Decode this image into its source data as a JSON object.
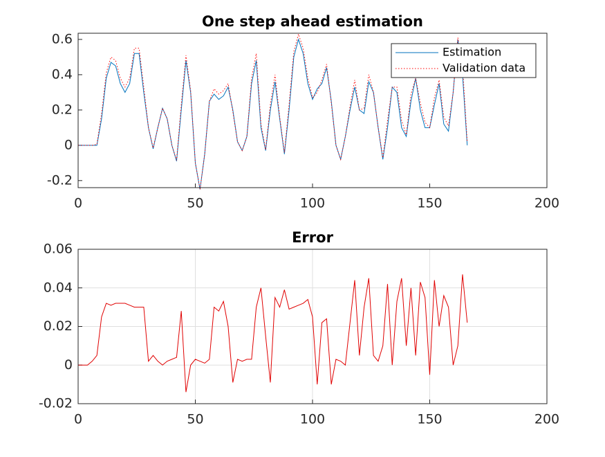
{
  "chart_data": [
    {
      "type": "line",
      "title": "One step ahead estimation",
      "x": [
        0,
        2,
        4,
        6,
        8,
        10,
        12,
        14,
        16,
        18,
        20,
        22,
        24,
        26,
        28,
        30,
        32,
        34,
        36,
        38,
        40,
        42,
        44,
        46,
        48,
        50,
        52,
        54,
        56,
        58,
        60,
        62,
        64,
        66,
        68,
        70,
        72,
        74,
        76,
        78,
        80,
        82,
        84,
        86,
        88,
        90,
        92,
        94,
        96,
        98,
        100,
        102,
        104,
        106,
        108,
        110,
        112,
        114,
        116,
        118,
        120,
        122,
        124,
        126,
        128,
        130,
        132,
        134,
        136,
        138,
        140,
        142,
        144,
        146,
        148,
        150,
        152,
        154,
        156,
        158,
        160,
        162,
        164,
        166
      ],
      "series": [
        {
          "name": "Estimation",
          "color": "#0072bd",
          "line_style": "solid",
          "values": [
            0,
            0,
            0,
            0,
            0,
            0.15,
            0.38,
            0.47,
            0.45,
            0.35,
            0.3,
            0.35,
            0.52,
            0.52,
            0.3,
            0.1,
            -0.02,
            0.1,
            0.21,
            0.15,
            0.0,
            -0.09,
            0.2,
            0.48,
            0.3,
            -0.1,
            -0.25,
            -0.05,
            0.25,
            0.29,
            0.26,
            0.28,
            0.33,
            0.2,
            0.02,
            -0.03,
            0.05,
            0.35,
            0.48,
            0.1,
            -0.03,
            0.2,
            0.36,
            0.15,
            -0.05,
            0.2,
            0.5,
            0.6,
            0.52,
            0.35,
            0.26,
            0.32,
            0.35,
            0.44,
            0.25,
            0.0,
            -0.08,
            0.05,
            0.2,
            0.33,
            0.2,
            0.18,
            0.36,
            0.3,
            0.1,
            -0.08,
            0.1,
            0.33,
            0.3,
            0.1,
            0.05,
            0.25,
            0.38,
            0.2,
            0.1,
            0.1,
            0.23,
            0.35,
            0.12,
            0.08,
            0.3,
            0.6,
            0.4,
            0.0
          ]
        },
        {
          "name": "Validation data",
          "color": "#ff0000",
          "line_style": "dotted",
          "values": [
            0,
            0,
            0,
            0,
            0.005,
            0.18,
            0.41,
            0.5,
            0.48,
            0.38,
            0.33,
            0.38,
            0.55,
            0.55,
            0.33,
            0.1,
            -0.015,
            0.1,
            0.21,
            0.15,
            0.0,
            -0.085,
            0.23,
            0.51,
            0.31,
            -0.1,
            -0.25,
            -0.05,
            0.25,
            0.32,
            0.29,
            0.31,
            0.35,
            0.19,
            0.02,
            -0.03,
            0.05,
            0.38,
            0.52,
            0.12,
            -0.025,
            0.23,
            0.4,
            0.16,
            -0.04,
            0.23,
            0.53,
            0.63,
            0.55,
            0.38,
            0.27,
            0.3,
            0.37,
            0.46,
            0.24,
            0.0,
            -0.08,
            0.05,
            0.22,
            0.37,
            0.2,
            0.21,
            0.4,
            0.3,
            0.1,
            -0.07,
            0.14,
            0.33,
            0.33,
            0.14,
            0.06,
            0.29,
            0.38,
            0.24,
            0.13,
            0.1,
            0.27,
            0.37,
            0.16,
            0.11,
            0.3,
            0.61,
            0.45,
            0.02
          ]
        }
      ],
      "xlim": [
        0,
        200
      ],
      "xticks": [
        0,
        50,
        100,
        150,
        200
      ],
      "ylim": [
        -0.24,
        0.635
      ],
      "yticks": [
        -0.2,
        0,
        0.2,
        0.4,
        0.6
      ],
      "grid": false,
      "legend": "northeast"
    },
    {
      "type": "line",
      "title": "Error",
      "x": [
        0,
        2,
        4,
        6,
        8,
        10,
        12,
        14,
        16,
        18,
        20,
        22,
        24,
        26,
        28,
        30,
        32,
        34,
        36,
        38,
        40,
        42,
        44,
        46,
        48,
        50,
        52,
        54,
        56,
        58,
        60,
        62,
        64,
        66,
        68,
        70,
        72,
        74,
        76,
        78,
        80,
        82,
        84,
        86,
        88,
        90,
        92,
        94,
        96,
        98,
        100,
        102,
        104,
        106,
        108,
        110,
        112,
        114,
        116,
        118,
        120,
        122,
        124,
        126,
        128,
        130,
        132,
        134,
        136,
        138,
        140,
        142,
        144,
        146,
        148,
        150,
        152,
        154,
        156,
        158,
        160,
        162,
        164,
        166
      ],
      "series": [
        {
          "color": "#e00000",
          "line_style": "solid",
          "values": [
            0,
            0,
            0,
            0.002,
            0.005,
            0.025,
            0.032,
            0.031,
            0.032,
            0.032,
            0.032,
            0.031,
            0.03,
            0.03,
            0.03,
            0.002,
            0.005,
            0.002,
            0,
            0.002,
            0.003,
            0.004,
            0.028,
            -0.014,
            0.0,
            0.003,
            0.002,
            0.001,
            0.003,
            0.03,
            0.028,
            0.033,
            0.02,
            -0.009,
            0.003,
            0.002,
            0.003,
            0.003,
            0.03,
            0.04,
            0.015,
            -0.009,
            0.035,
            0.03,
            0.039,
            0.029,
            0.03,
            0.031,
            0.032,
            0.034,
            0.025,
            -0.01,
            0.022,
            0.024,
            -0.01,
            0.003,
            0.002,
            0.0,
            0.022,
            0.044,
            0.005,
            0.03,
            0.045,
            0.005,
            0.002,
            0.01,
            0.042,
            0.0,
            0.033,
            0.045,
            0.01,
            0.04,
            0.005,
            0.043,
            0.035,
            -0.005,
            0.044,
            0.02,
            0.036,
            0.03,
            0.0,
            0.01,
            0.047,
            0.022
          ]
        }
      ],
      "xlim": [
        0,
        200
      ],
      "xticks": [
        0,
        50,
        100,
        150,
        200
      ],
      "ylim": [
        -0.02,
        0.06
      ],
      "yticks": [
        -0.02,
        0,
        0.02,
        0.04,
        0.06
      ],
      "grid": true
    }
  ]
}
